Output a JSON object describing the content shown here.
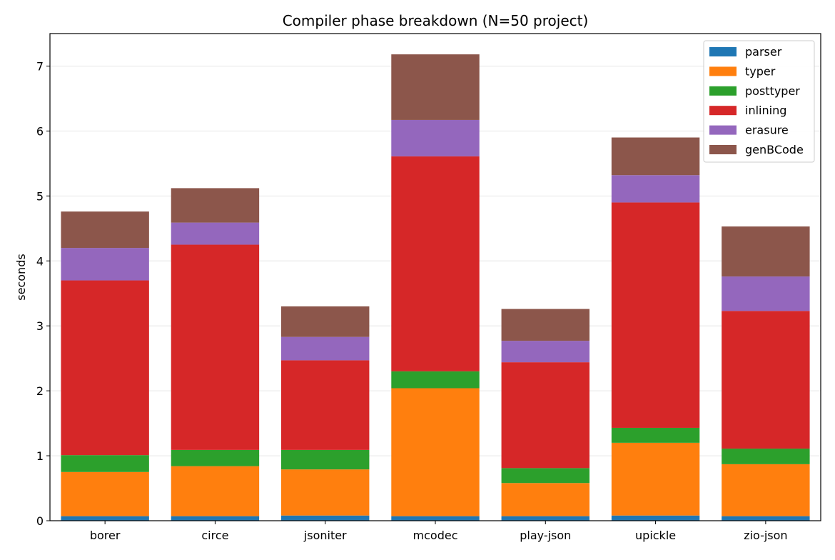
{
  "chart_data": {
    "type": "bar",
    "stacked": true,
    "title": "Compiler phase breakdown (N=50 project)",
    "xlabel": "",
    "ylabel": "seconds",
    "ylim": [
      0,
      7.5
    ],
    "yticks": [
      0,
      1,
      2,
      3,
      4,
      5,
      6,
      7
    ],
    "grid": "horizontal",
    "legend_position": "top-right",
    "categories": [
      "borer",
      "circe",
      "jsoniter",
      "mcodec",
      "play-json",
      "upickle",
      "zio-json"
    ],
    "series": [
      {
        "name": "parser",
        "color": "#1f77b4",
        "values": [
          0.07,
          0.07,
          0.08,
          0.07,
          0.07,
          0.08,
          0.07
        ]
      },
      {
        "name": "typer",
        "color": "#ff7f0e",
        "values": [
          0.68,
          0.77,
          0.71,
          1.97,
          0.51,
          1.12,
          0.8
        ]
      },
      {
        "name": "posttyper",
        "color": "#2ca02c",
        "values": [
          0.26,
          0.25,
          0.3,
          0.26,
          0.23,
          0.23,
          0.24
        ]
      },
      {
        "name": "inlining",
        "color": "#d62728",
        "values": [
          2.69,
          3.16,
          1.38,
          3.31,
          1.63,
          3.47,
          2.12
        ]
      },
      {
        "name": "erasure",
        "color": "#9467bd",
        "values": [
          0.5,
          0.34,
          0.36,
          0.56,
          0.33,
          0.42,
          0.53
        ]
      },
      {
        "name": "genBCode",
        "color": "#8c564b",
        "values": [
          0.56,
          0.53,
          0.47,
          1.01,
          0.49,
          0.58,
          0.77
        ]
      }
    ]
  }
}
